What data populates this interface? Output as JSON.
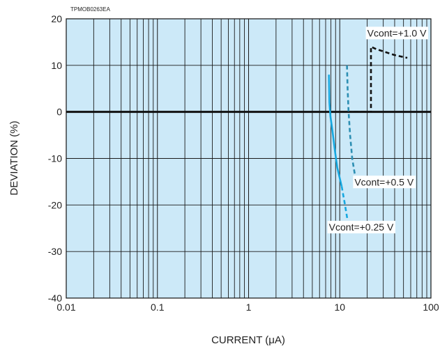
{
  "chart_data": {
    "type": "line",
    "code_label": "TPMOB0263EA",
    "xlabel": "CURRENT (μA)",
    "ylabel": "DEVIATION (%)",
    "xscale": "log",
    "xlim": [
      0.01,
      100
    ],
    "ylim": [
      -40,
      20
    ],
    "x_ticks": [
      {
        "value": 0.01,
        "label": "0.01"
      },
      {
        "value": 0.1,
        "label": "0.1"
      },
      {
        "value": 1,
        "label": "1"
      },
      {
        "value": 10,
        "label": "10"
      },
      {
        "value": 100,
        "label": "100"
      }
    ],
    "y_ticks": [
      {
        "value": 20,
        "label": "20"
      },
      {
        "value": 10,
        "label": "10"
      },
      {
        "value": 0,
        "label": "0"
      },
      {
        "value": -10,
        "label": "-10"
      },
      {
        "value": -20,
        "label": "-20"
      },
      {
        "value": -30,
        "label": "-30"
      },
      {
        "value": -40,
        "label": "-40"
      }
    ],
    "grid": true,
    "colors": {
      "plot_bg": "#cce9f8",
      "grid": "#1a1a1a",
      "zero_line": "#111111"
    },
    "series": [
      {
        "label": "Vcont=+1.0 V",
        "color": "#111111",
        "dash": "dashed",
        "x": [
          12,
          15,
          18,
          22,
          22,
          25,
          30,
          40,
          55
        ],
        "y": [
          0,
          0,
          0,
          0,
          14,
          13.5,
          13,
          12.2,
          11.6
        ],
        "annotation": {
          "x": 20,
          "y": 16.2
        }
      },
      {
        "label": "Vcont=+0.5 V",
        "color": "#2d8fb3",
        "dash": "dashed",
        "x": [
          12,
          12.2,
          12.5,
          13,
          13.7,
          14.8
        ],
        "y": [
          10,
          5,
          0,
          -5,
          -10,
          -14
        ],
        "annotation": {
          "x": 14.5,
          "y": -15.8
        }
      },
      {
        "label": "Vcont=+0.25 V",
        "color": "#16a8e0",
        "dash": "solid-then-dashed",
        "x": [
          7.6,
          7.7,
          7.9,
          8.3,
          8.8,
          9.4,
          10.5,
          11.3,
          12.1
        ],
        "y": [
          8,
          2,
          -1,
          -4,
          -8,
          -12,
          -16,
          -19.5,
          -23
        ],
        "dash_from_index": 6,
        "annotation": {
          "x": 7.6,
          "y": -25.5
        }
      }
    ]
  }
}
